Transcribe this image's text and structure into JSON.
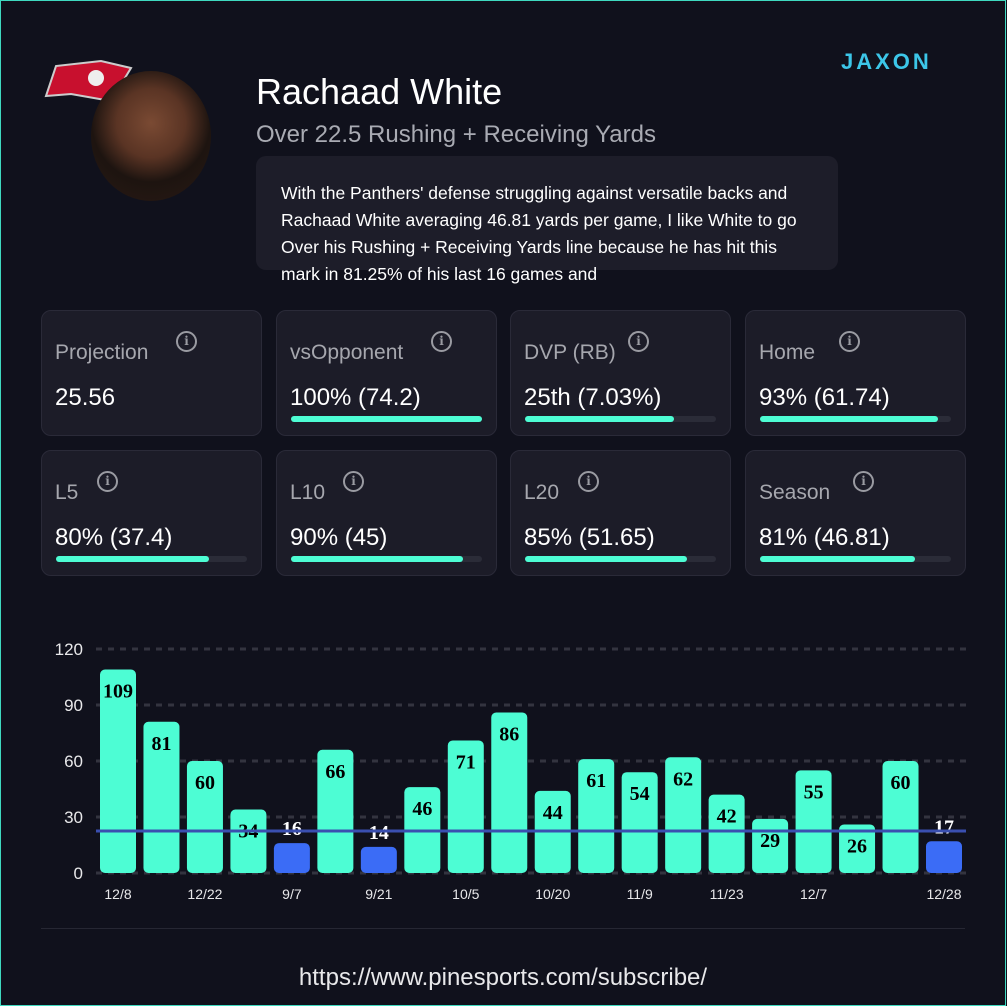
{
  "header": {
    "player_name": "Rachaad White",
    "prop": "Over 22.5 Rushing + Receiving Yards",
    "brand": "JAXON",
    "analysis": "With the Panthers' defense struggling against versatile backs and Rachaad White averaging 46.81 yards per game, I like White to go Over his Rushing + Receiving Yards line because he has hit this mark in 81.25% of his last 16 games and"
  },
  "cards": [
    {
      "label": "Projection",
      "value": "25.56"
    },
    {
      "label": "vsOpponent",
      "value": "100% (74.2)",
      "fill": 1.0
    },
    {
      "label": "DVP (RB)",
      "value": "25th (7.03%)",
      "fill": 0.78
    },
    {
      "label": "Home",
      "value": "93% (61.74)",
      "fill": 0.93
    },
    {
      "label": "L5",
      "value": "80% (37.4)",
      "fill": 0.8
    },
    {
      "label": "L10",
      "value": "90% (45)",
      "fill": 0.9
    },
    {
      "label": "L20",
      "value": "85% (51.65)",
      "fill": 0.85
    },
    {
      "label": "Season",
      "value": "81% (46.81)",
      "fill": 0.81
    }
  ],
  "chart_data": {
    "type": "bar",
    "categories": [
      "12/8",
      "",
      "12/22",
      "",
      "9/7",
      "",
      "9/21",
      "",
      "10/5",
      "",
      "10/20",
      "",
      "11/9",
      "",
      "11/23",
      "",
      "12/7",
      "",
      "",
      "12/28"
    ],
    "values": [
      109,
      81,
      60,
      34,
      16,
      66,
      14,
      46,
      71,
      86,
      44,
      61,
      54,
      62,
      42,
      29,
      55,
      26,
      60,
      17
    ],
    "line": 22.5,
    "ylim": [
      0,
      120
    ],
    "yticks": [
      "0",
      "30",
      "60",
      "90",
      "120"
    ],
    "colors": {
      "hit": "#4dfdd4",
      "miss": "#3b6cf6",
      "line": "#3a4fb0"
    }
  },
  "footer": {
    "url": "https://www.pinesports.com/subscribe/"
  }
}
